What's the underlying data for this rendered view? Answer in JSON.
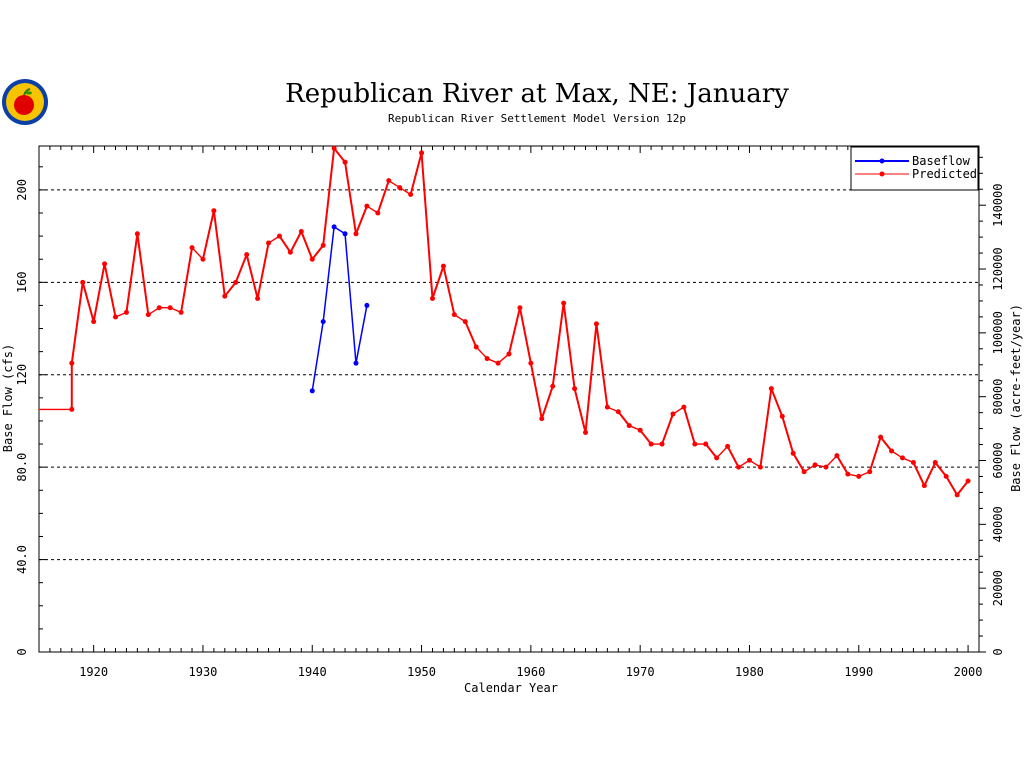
{
  "chart_data": {
    "type": "line",
    "title": "Republican River at Max, NE: January",
    "subtitle": "Republican River Settlement Model Version 12p",
    "xlabel": "Calendar Year",
    "ylabel": "Base Flow (cfs)",
    "y2label": "Base Flow (acre-feet/year)",
    "xlim": [
      1915,
      2001
    ],
    "ylim": [
      0,
      219
    ],
    "y2lim": [
      0,
      158547
    ],
    "x_ticks": [
      1920,
      1930,
      1940,
      1950,
      1960,
      1970,
      1980,
      1990,
      2000
    ],
    "y_ticks": [
      0,
      40,
      80,
      120,
      160,
      200
    ],
    "y_tick_labels": [
      "0",
      "40.0",
      "80.0",
      "120",
      "160",
      "200"
    ],
    "y2_ticks": [
      0,
      20000,
      40000,
      60000,
      80000,
      100000,
      120000,
      140000
    ],
    "y2_tick_labels": [
      "0",
      "20000",
      "40000",
      "60000",
      "80000",
      "100000",
      "120000",
      "140000"
    ],
    "gridlines_y": [
      40,
      80,
      120,
      160,
      200
    ],
    "legend_position": "top-right",
    "series": [
      {
        "name": "Baseflow",
        "color": "#0000ff",
        "x": [
          1940,
          1941,
          1942,
          1943,
          1944,
          1945
        ],
        "values": [
          113,
          143,
          184,
          181,
          125,
          150
        ]
      },
      {
        "name": "Predicted",
        "color": "#ff0000",
        "x": [
          1915,
          1918,
          1918,
          1919,
          1920,
          1921,
          1922,
          1923,
          1924,
          1925,
          1926,
          1927,
          1928,
          1929,
          1930,
          1931,
          1932,
          1933,
          1934,
          1935,
          1936,
          1937,
          1938,
          1939,
          1940,
          1941,
          1942,
          1943,
          1944,
          1945,
          1946,
          1947,
          1948,
          1949,
          1950,
          1951,
          1952,
          1953,
          1954,
          1955,
          1956,
          1957,
          1958,
          1959,
          1960,
          1961,
          1962,
          1963,
          1964,
          1965,
          1966,
          1967,
          1968,
          1969,
          1970,
          1971,
          1972,
          1973,
          1974,
          1975,
          1976,
          1977,
          1978,
          1979,
          1980,
          1981,
          1982,
          1983,
          1984,
          1985,
          1986,
          1987,
          1988,
          1989,
          1990,
          1991,
          1992,
          1993,
          1994,
          1995,
          1996,
          1997,
          1998,
          1999,
          2000
        ],
        "values": [
          105,
          105,
          125,
          160,
          143,
          168,
          145,
          147,
          181,
          146,
          149,
          149,
          147,
          175,
          170,
          191,
          154,
          160,
          172,
          153,
          177,
          180,
          173,
          182,
          170,
          176,
          218,
          212,
          181,
          193,
          190,
          204,
          201,
          198,
          216,
          153,
          167,
          146,
          143,
          132,
          127,
          125,
          129,
          149,
          125,
          101,
          115,
          151,
          114,
          95,
          142,
          106,
          104,
          98,
          96,
          90,
          90,
          103,
          106,
          90,
          90,
          84,
          89,
          80,
          83,
          80,
          114,
          102,
          86,
          78,
          81,
          80,
          85,
          77,
          76,
          78,
          93,
          87,
          84,
          82,
          72,
          82,
          76,
          68,
          74
        ]
      }
    ]
  }
}
